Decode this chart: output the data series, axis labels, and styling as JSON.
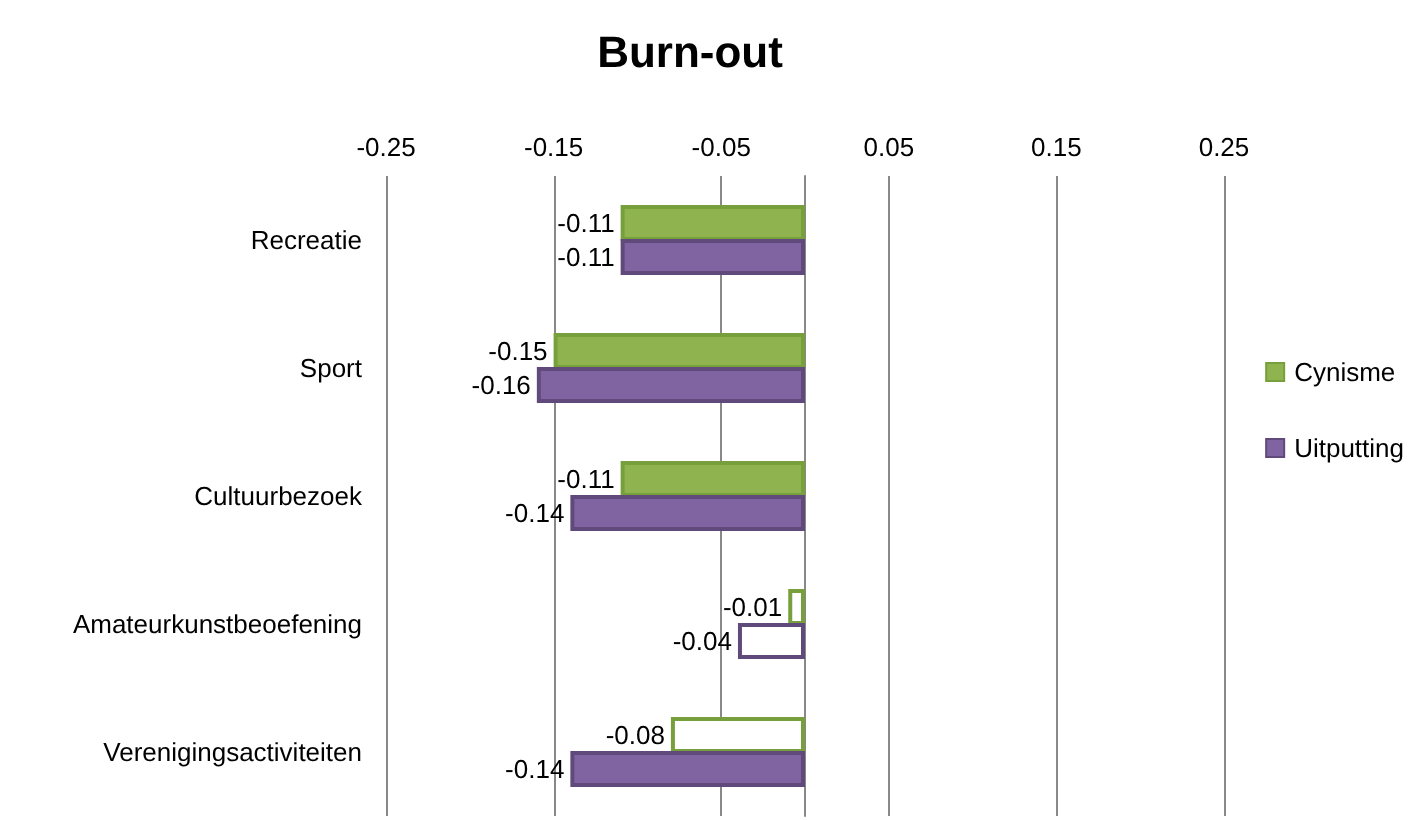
{
  "chart_data": {
    "type": "bar",
    "title": "Burn-out",
    "orientation": "horizontal",
    "categories": [
      "Recreatie",
      "Sport",
      "Cultuurbezoek",
      "Amateurkunstbeoefening",
      "Verenigingsactiviteiten"
    ],
    "series": [
      {
        "name": "Cynisme",
        "color": "#77a03c",
        "colors": [
          "#8fb34f",
          "#8fb34f",
          "#8fb34f",
          "#ffffff",
          "#ffffff"
        ],
        "values": [
          -0.11,
          -0.15,
          -0.11,
          -0.01,
          -0.08
        ]
      },
      {
        "name": "Uitputting",
        "color": "#604a7b",
        "colors": [
          "#8064a2",
          "#8064a2",
          "#8064a2",
          "#ffffff",
          "#8064a2"
        ],
        "values": [
          -0.11,
          -0.16,
          -0.14,
          -0.04,
          -0.14
        ]
      }
    ],
    "xlim": [
      -0.25,
      0.25
    ],
    "xticks": [
      -0.25,
      -0.15,
      -0.05,
      0.05,
      0.15,
      0.25
    ],
    "grid": "x",
    "legend": "right",
    "data_labels": true
  }
}
